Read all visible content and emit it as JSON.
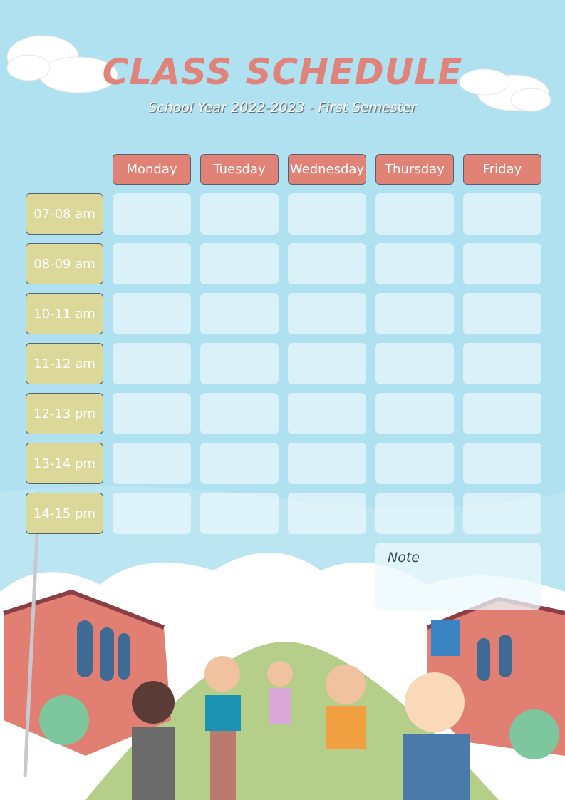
{
  "header": {
    "title": "CLASS SCHEDULE",
    "subtitle": "School Year 2022-2023 - First Semester"
  },
  "days": [
    "Monday",
    "Tuesday",
    "Wednesday",
    "Thursday",
    "Friday"
  ],
  "time_slots": [
    "07-08 am",
    "08-09 am",
    "10-11 am",
    "11-12 am",
    "12-13 pm",
    "13-14 pm",
    "14-15 pm"
  ],
  "note_label": "Note",
  "colors": {
    "background": "#b0e1f0",
    "title": "#e0837a",
    "day_header": "#e08276",
    "time_cell": "#dbd89a"
  }
}
